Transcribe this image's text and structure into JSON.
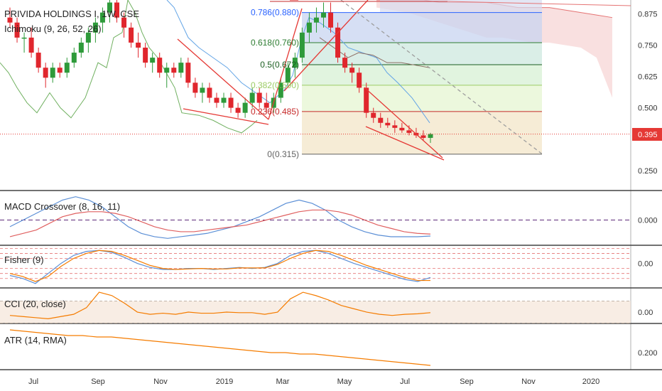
{
  "header": {
    "title": "PRIVIDA HOLDINGS I, 1W, CSE",
    "ichimoku_label": "Ichimoku (9, 26, 52, 26)"
  },
  "current_price_label": "0.395",
  "colors": {
    "up": "#26a69a",
    "down": "#ef5350",
    "up_body": "#2e9a3a",
    "down_body": "#e0262d",
    "fib_blue": "#2962ff",
    "red_line": "#e53935",
    "macd_blue": "#5b8fd6",
    "macd_red": "#e06060",
    "fisher_blue": "#5b8fd6",
    "fisher_orange": "#f57c00",
    "cci": "#f57c00",
    "atr": "#f57c00",
    "cloud_red": "#f8d8d8",
    "kijun_blue": "#64a5e6",
    "chikou_green": "#70b060"
  },
  "fibonacci": [
    {
      "label": "0.786(0.880)",
      "value": 0.88,
      "color": "#2962ff"
    },
    {
      "label": "0.618(0.760)",
      "value": 0.76,
      "color": "#2e7d32"
    },
    {
      "label": "0.5(0.672)",
      "value": 0.672,
      "color": "#1b5e20"
    },
    {
      "label": "0.382(0.590)",
      "value": 0.59,
      "color": "#9ccc65"
    },
    {
      "label": "0.236(0.485)",
      "value": 0.485,
      "color": "#c62828"
    },
    {
      "label": "0(0.315)",
      "value": 0.315,
      "color": "#616161"
    }
  ],
  "x_axis_labels": [
    "Jul",
    "Sep",
    "Nov",
    "2019",
    "Mar",
    "May",
    "Jul",
    "Sep",
    "Nov",
    "2020"
  ],
  "chart_data": [
    {
      "type": "candlestick",
      "title": "PRIVIDA HOLDINGS I, 1W, CSE",
      "y_ticks": [
        0.875,
        0.75,
        0.625,
        0.5,
        0.375,
        0.25
      ],
      "y_tick_labels": [
        "0.875",
        "0.750",
        "0.625",
        "0.500",
        "",
        "0.250"
      ],
      "ylim": [
        0.17,
        0.93
      ],
      "x_tick_labels": [
        "Jul",
        "Sep",
        "Nov",
        "2019",
        "Mar",
        "May",
        "Jul",
        "Sep",
        "Nov",
        "2020"
      ],
      "ohlc": [
        [
          0.86,
          0.9,
          0.82,
          0.84
        ],
        [
          0.84,
          0.86,
          0.76,
          0.78
        ],
        [
          0.78,
          0.8,
          0.72,
          0.78
        ],
        [
          0.78,
          0.82,
          0.7,
          0.72
        ],
        [
          0.72,
          0.74,
          0.64,
          0.66
        ],
        [
          0.66,
          0.68,
          0.58,
          0.62
        ],
        [
          0.62,
          0.68,
          0.6,
          0.66
        ],
        [
          0.66,
          0.68,
          0.62,
          0.64
        ],
        [
          0.64,
          0.7,
          0.62,
          0.68
        ],
        [
          0.68,
          0.74,
          0.66,
          0.72
        ],
        [
          0.72,
          0.78,
          0.7,
          0.76
        ],
        [
          0.76,
          0.82,
          0.72,
          0.8
        ],
        [
          0.8,
          0.86,
          0.76,
          0.84
        ],
        [
          0.84,
          0.9,
          0.8,
          0.88
        ],
        [
          0.88,
          0.94,
          0.84,
          0.92
        ],
        [
          0.92,
          0.94,
          0.84,
          0.86
        ],
        [
          0.86,
          0.88,
          0.78,
          0.82
        ],
        [
          0.82,
          0.84,
          0.74,
          0.76
        ],
        [
          0.76,
          0.8,
          0.7,
          0.74
        ],
        [
          0.74,
          0.76,
          0.66,
          0.68
        ],
        [
          0.68,
          0.72,
          0.64,
          0.7
        ],
        [
          0.7,
          0.72,
          0.62,
          0.64
        ],
        [
          0.64,
          0.68,
          0.58,
          0.66
        ],
        [
          0.66,
          0.68,
          0.62,
          0.64
        ],
        [
          0.64,
          0.7,
          0.62,
          0.68
        ],
        [
          0.68,
          0.7,
          0.58,
          0.6
        ],
        [
          0.6,
          0.62,
          0.54,
          0.56
        ],
        [
          0.56,
          0.6,
          0.52,
          0.58
        ],
        [
          0.58,
          0.6,
          0.52,
          0.54
        ],
        [
          0.54,
          0.56,
          0.5,
          0.52
        ],
        [
          0.52,
          0.56,
          0.5,
          0.54
        ],
        [
          0.54,
          0.56,
          0.48,
          0.5
        ],
        [
          0.5,
          0.52,
          0.46,
          0.48
        ],
        [
          0.48,
          0.54,
          0.46,
          0.52
        ],
        [
          0.52,
          0.58,
          0.5,
          0.56
        ],
        [
          0.56,
          0.58,
          0.5,
          0.52
        ],
        [
          0.52,
          0.56,
          0.48,
          0.5
        ],
        [
          0.5,
          0.56,
          0.48,
          0.54
        ],
        [
          0.54,
          0.62,
          0.52,
          0.6
        ],
        [
          0.6,
          0.68,
          0.58,
          0.66
        ],
        [
          0.66,
          0.72,
          0.62,
          0.7
        ],
        [
          0.7,
          0.82,
          0.68,
          0.8
        ],
        [
          0.8,
          0.88,
          0.76,
          0.84
        ],
        [
          0.84,
          0.9,
          0.8,
          0.86
        ],
        [
          0.86,
          0.92,
          0.82,
          0.88
        ],
        [
          0.88,
          0.92,
          0.8,
          0.82
        ],
        [
          0.82,
          0.84,
          0.68,
          0.7
        ],
        [
          0.7,
          0.72,
          0.64,
          0.66
        ],
        [
          0.66,
          0.68,
          0.6,
          0.64
        ],
        [
          0.64,
          0.66,
          0.56,
          0.58
        ],
        [
          0.58,
          0.6,
          0.46,
          0.48
        ],
        [
          0.48,
          0.5,
          0.44,
          0.46
        ],
        [
          0.46,
          0.48,
          0.42,
          0.44
        ],
        [
          0.44,
          0.46,
          0.42,
          0.43
        ],
        [
          0.43,
          0.45,
          0.4,
          0.42
        ],
        [
          0.42,
          0.44,
          0.4,
          0.41
        ],
        [
          0.41,
          0.43,
          0.39,
          0.4
        ],
        [
          0.4,
          0.42,
          0.38,
          0.39
        ],
        [
          0.39,
          0.41,
          0.37,
          0.38
        ],
        [
          0.38,
          0.4,
          0.36,
          0.395
        ]
      ]
    },
    {
      "type": "line",
      "title": "MACD Crossover (8, 16, 11)",
      "y_tick_labels": [
        "0.000"
      ],
      "series": [
        {
          "values": [
            -0.02,
            0.0,
            0.02,
            0.04,
            0.06,
            0.07,
            0.06,
            0.04,
            0.01,
            -0.02,
            -0.04,
            -0.05,
            -0.055,
            -0.05,
            -0.045,
            -0.04,
            -0.03,
            -0.02,
            -0.005,
            0.01,
            0.03,
            0.05,
            0.06,
            0.05,
            0.03,
            0.0,
            -0.02,
            -0.035,
            -0.045,
            -0.05,
            -0.05,
            -0.05,
            -0.048
          ]
        },
        {
          "values": [
            -0.05,
            -0.04,
            -0.03,
            -0.01,
            0.01,
            0.02,
            0.025,
            0.025,
            0.02,
            0.01,
            -0.005,
            -0.02,
            -0.03,
            -0.035,
            -0.035,
            -0.03,
            -0.025,
            -0.02,
            -0.015,
            -0.005,
            0.005,
            0.015,
            0.025,
            0.03,
            0.03,
            0.025,
            0.015,
            0.0,
            -0.015,
            -0.025,
            -0.035,
            -0.04,
            -0.042
          ]
        }
      ]
    },
    {
      "type": "line",
      "title": "Fisher (9)",
      "y_tick_labels": [
        "0.00"
      ],
      "series": [
        {
          "values": [
            -1.2,
            -1.5,
            -2.0,
            -1.0,
            0.0,
            0.8,
            1.2,
            1.3,
            1.1,
            0.6,
            0.0,
            -0.4,
            -0.6,
            -0.6,
            -0.5,
            -0.5,
            -0.6,
            -0.5,
            -0.4,
            -0.5,
            -0.4,
            0.0,
            0.8,
            1.2,
            1.3,
            1.0,
            0.5,
            0.0,
            -0.4,
            -0.8,
            -1.2,
            -1.6,
            -1.8,
            -1.4
          ]
        },
        {
          "values": [
            -1.0,
            -1.3,
            -1.8,
            -1.3,
            -0.3,
            0.5,
            1.0,
            1.3,
            1.2,
            0.8,
            0.3,
            -0.2,
            -0.5,
            -0.6,
            -0.55,
            -0.5,
            -0.55,
            -0.55,
            -0.45,
            -0.45,
            -0.45,
            -0.1,
            0.5,
            1.0,
            1.3,
            1.2,
            0.8,
            0.3,
            -0.2,
            -0.6,
            -1.0,
            -1.4,
            -1.7,
            -1.7
          ]
        }
      ]
    },
    {
      "type": "line",
      "title": "CCI (20, close)",
      "y_tick_labels": [
        "0.00"
      ],
      "series": [
        {
          "values": [
            -30,
            -40,
            -50,
            -60,
            -40,
            -20,
            40,
            180,
            150,
            80,
            0,
            -20,
            -10,
            -20,
            0,
            -10,
            -10,
            0,
            -5,
            -5,
            -20,
            0,
            120,
            180,
            150,
            110,
            60,
            30,
            0,
            -20,
            -30,
            -20,
            -15,
            -5
          ]
        }
      ]
    },
    {
      "type": "line",
      "title": "ATR (14, RMA)",
      "y_tick_labels": [
        "0.200"
      ],
      "series": [
        {
          "values": [
            0.28,
            0.275,
            0.27,
            0.265,
            0.26,
            0.26,
            0.255,
            0.255,
            0.25,
            0.245,
            0.24,
            0.235,
            0.23,
            0.225,
            0.22,
            0.215,
            0.21,
            0.205,
            0.2,
            0.2,
            0.195,
            0.195,
            0.19,
            0.185,
            0.18,
            0.175,
            0.17,
            0.165,
            0.16,
            0.155
          ]
        }
      ]
    }
  ]
}
